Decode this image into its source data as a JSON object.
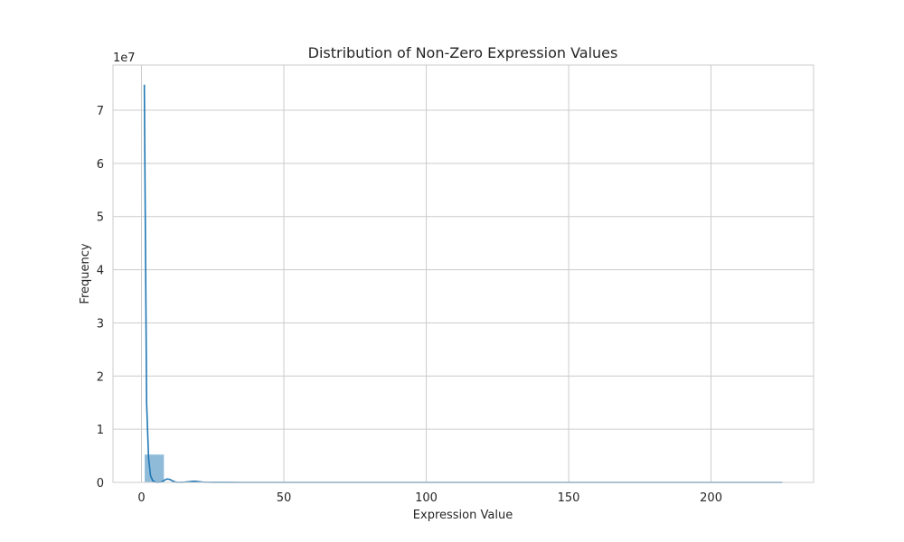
{
  "chart_data": {
    "type": "histogram",
    "title": "Distribution of Non-Zero Expression Values",
    "xlabel": "Expression Value",
    "ylabel": "Frequency",
    "y_offset_label": "1e7",
    "xlim": [
      -10,
      236
    ],
    "ylim": [
      0,
      78500000
    ],
    "x_ticks": [
      0,
      50,
      100,
      150,
      200
    ],
    "y_ticks": [
      0,
      1,
      2,
      3,
      4,
      5,
      6,
      7
    ],
    "y_tick_scale": 10000000,
    "grid": true,
    "bins": [
      {
        "x0": 1,
        "x1": 8,
        "count": 5300000
      },
      {
        "x0": 8,
        "x1": 15,
        "count": 60000
      },
      {
        "x0": 15,
        "x1": 22,
        "count": 15000
      },
      {
        "x0": 22,
        "x1": 29,
        "count": 5000
      }
    ],
    "kde": {
      "x": [
        1,
        1.8,
        2.5,
        3.2,
        4,
        5,
        6,
        7,
        8,
        9,
        10,
        11,
        12,
        13,
        15,
        17,
        18.5,
        20,
        22,
        26,
        35,
        60,
        100,
        150,
        200,
        225
      ],
      "y": [
        74800000,
        15000000,
        4500000,
        1200000,
        300000,
        30000,
        0,
        60000,
        400000,
        650000,
        550000,
        250000,
        50000,
        0,
        30000,
        150000,
        220000,
        140000,
        20000,
        5000,
        2000,
        500,
        300,
        200,
        100,
        50
      ]
    },
    "colors": {
      "bar": "#1f77b4",
      "line": "#1f77b4",
      "grid": "#cccccc",
      "spine": "#cccccc",
      "text": "#262626"
    }
  }
}
